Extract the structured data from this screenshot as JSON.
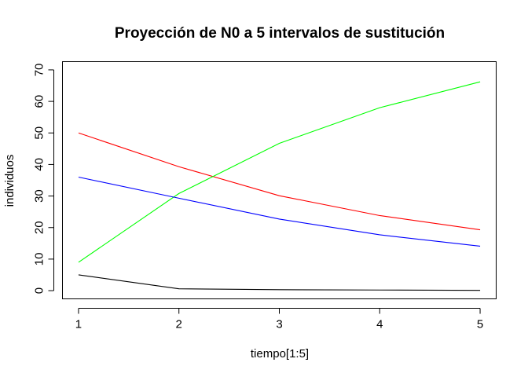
{
  "chart_data": {
    "type": "line",
    "title": "Proyección de N0 a 5 intervalos de sustitución",
    "xlabel": "tiempo[1:5]",
    "ylabel": "individuos",
    "x": [
      1,
      2,
      3,
      4,
      5
    ],
    "xlim": [
      0.84,
      5.16
    ],
    "ylim": [
      -2.6,
      72.6
    ],
    "xticks": [
      1,
      2,
      3,
      4,
      5
    ],
    "yticks": [
      0,
      10,
      20,
      30,
      40,
      50,
      60,
      70
    ],
    "grid": false,
    "series": [
      {
        "color": "#000000",
        "values": [
          5,
          0.6,
          0.3,
          0.2,
          0.1
        ]
      },
      {
        "color": "#ff0000",
        "values": [
          50,
          39.3,
          30.1,
          23.8,
          19.3
        ]
      },
      {
        "color": "#00ff00",
        "values": [
          9,
          30.8,
          46.7,
          58,
          66.2
        ]
      },
      {
        "color": "#0000ff",
        "values": [
          36,
          29.3,
          22.7,
          17.7,
          14.1
        ]
      }
    ]
  }
}
